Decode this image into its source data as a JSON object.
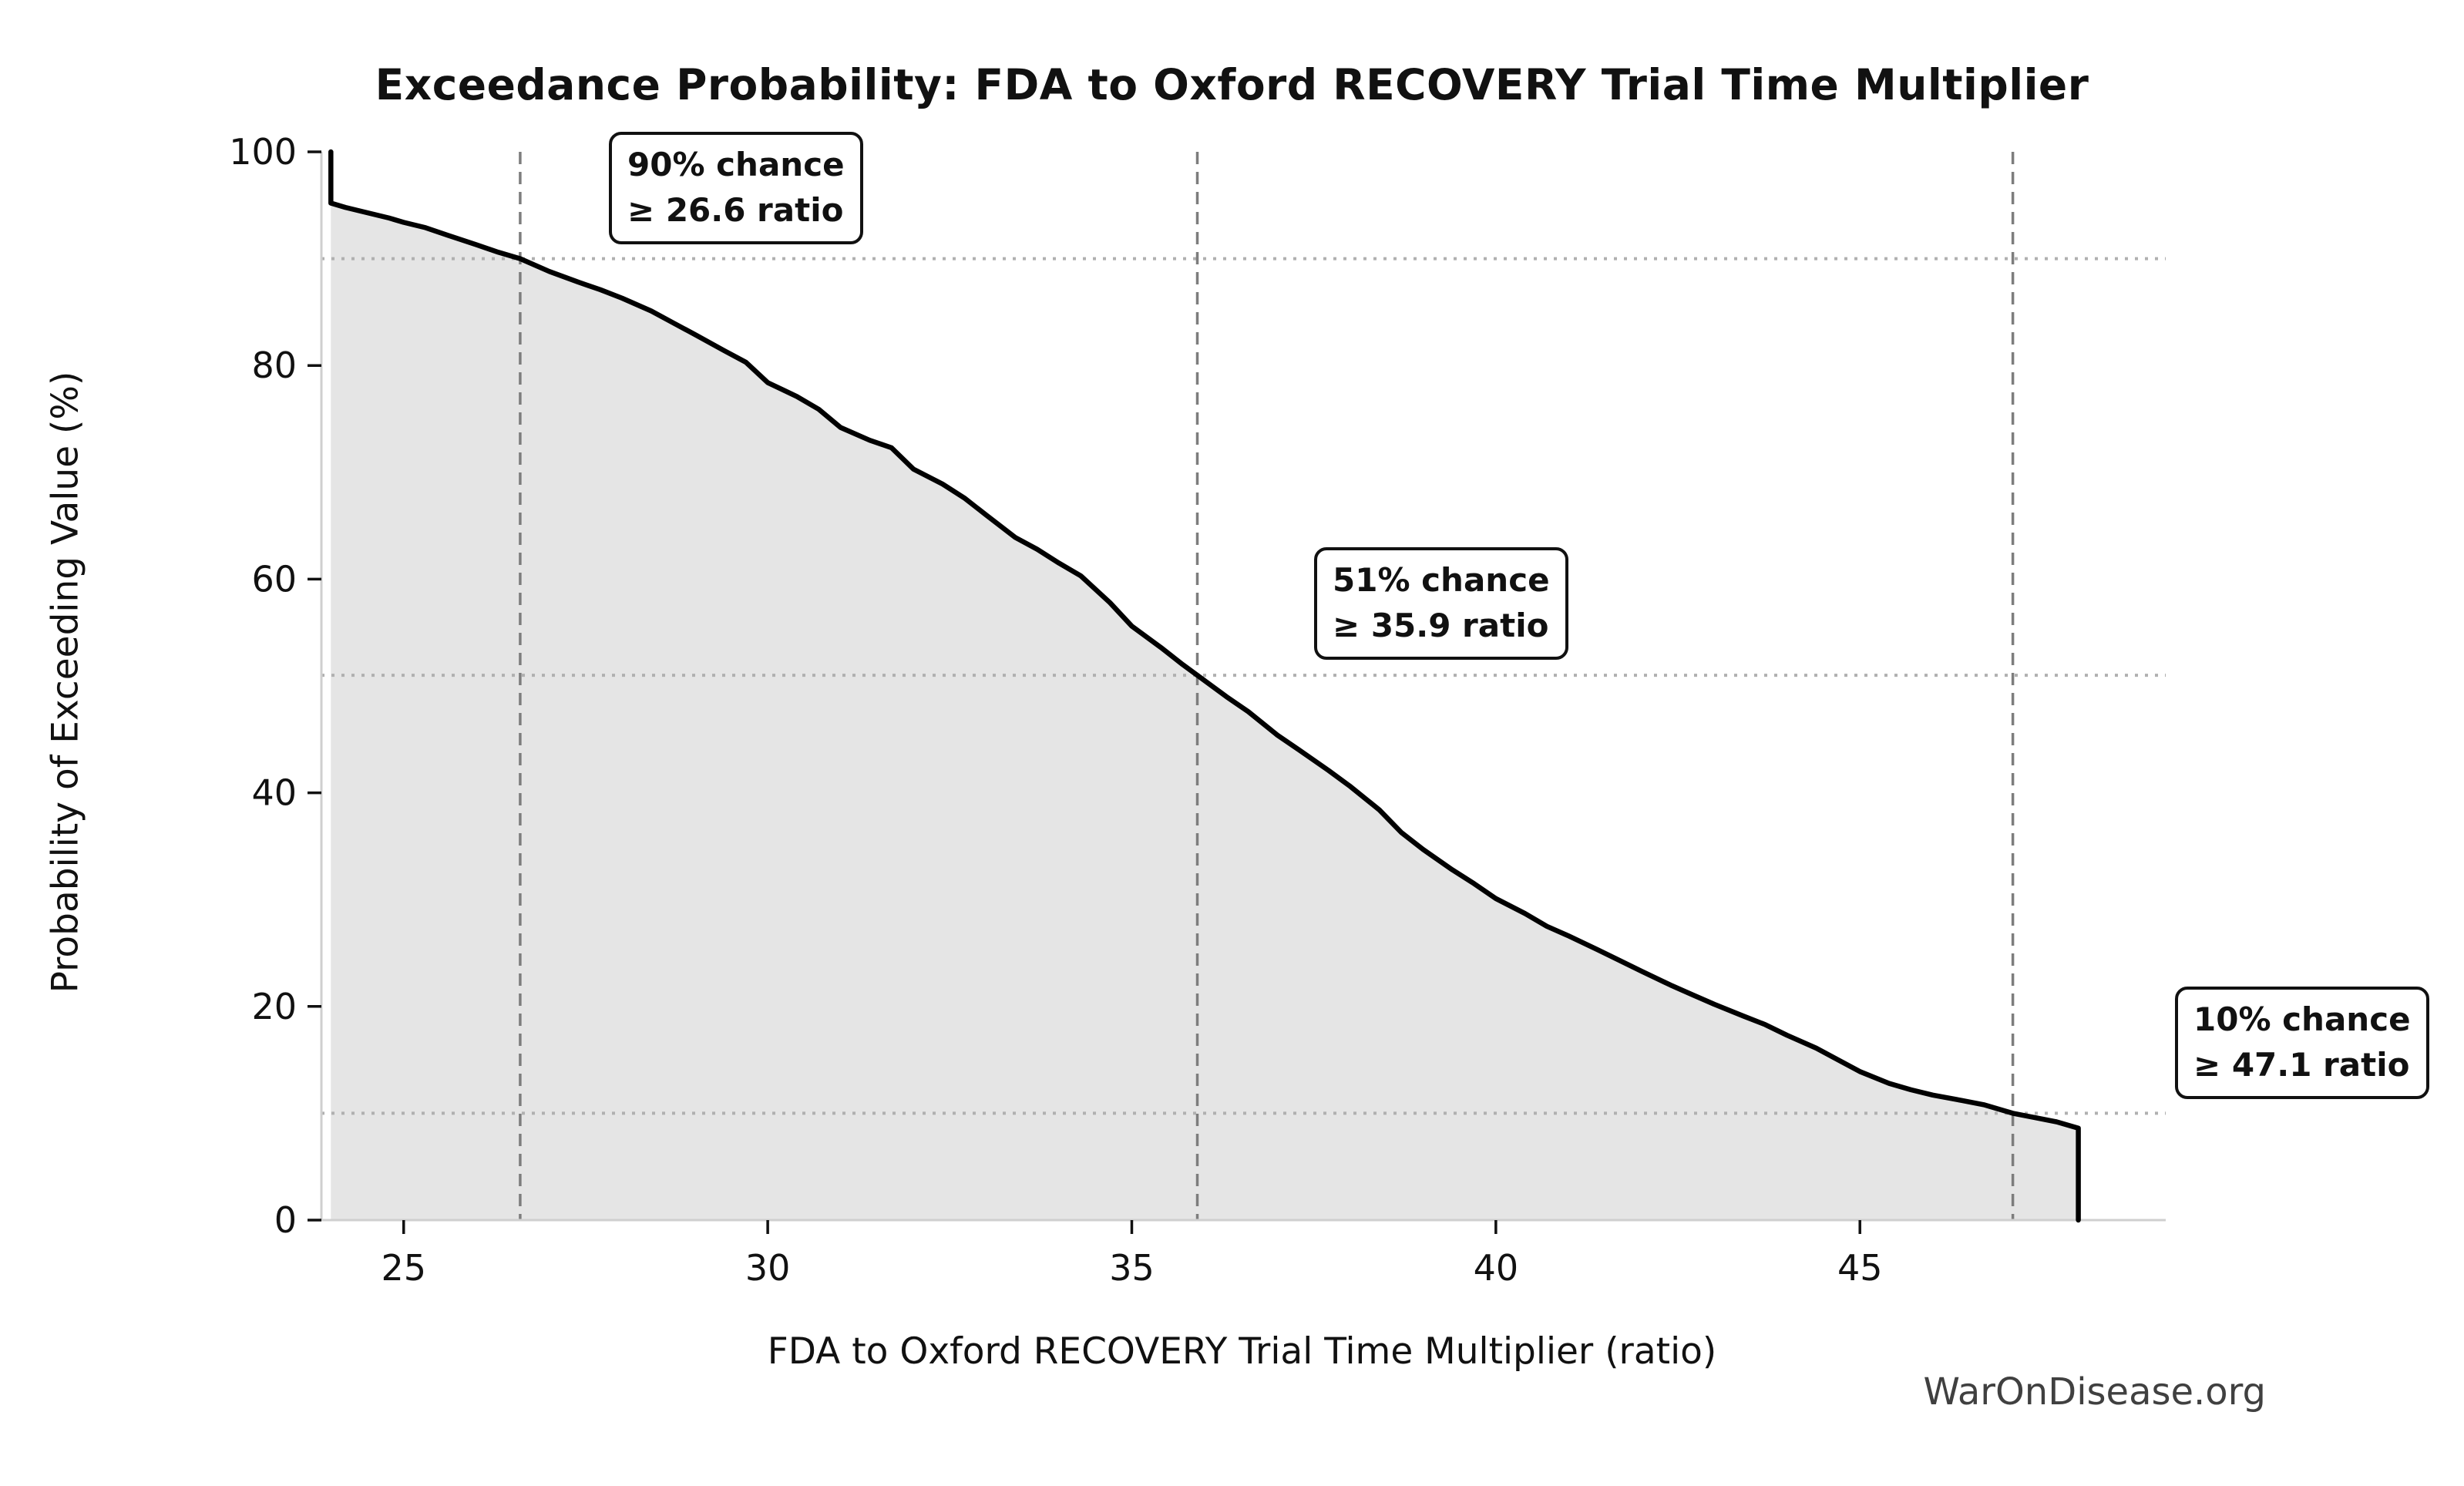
{
  "title": "Exceedance Probability: FDA to Oxford RECOVERY Trial Time Multiplier",
  "watermark": "WarOnDisease.org",
  "chart_data": {
    "type": "area",
    "title": "Exceedance Probability: FDA to Oxford RECOVERY Trial Time Multiplier",
    "xlabel": "FDA to Oxford RECOVERY Trial Time Multiplier (ratio)",
    "ylabel": "Probability of Exceeding Value (%)",
    "xlim": [
      23.87,
      49.2
    ],
    "ylim": [
      0,
      100
    ],
    "x_ticks": [
      25,
      30,
      35,
      40,
      45
    ],
    "y_ticks": [
      0,
      20,
      40,
      60,
      80,
      100
    ],
    "legend": "none",
    "grid": "reference lines only",
    "line_color": "#000000",
    "fill_color": "#e5e5e5",
    "vline_color": "#7d7d7d",
    "hline_color": "#b0b0b0",
    "spine_color": "#cfcfcf",
    "curve": [
      [
        24.0,
        100
      ],
      [
        24.0,
        95.2
      ],
      [
        24.2,
        94.8
      ],
      [
        24.5,
        94.3
      ],
      [
        24.8,
        93.8
      ],
      [
        25.0,
        93.4
      ],
      [
        25.3,
        92.9
      ],
      [
        25.6,
        92.2
      ],
      [
        26.0,
        91.3
      ],
      [
        26.3,
        90.6
      ],
      [
        26.6,
        90.0
      ],
      [
        27.0,
        88.8
      ],
      [
        27.4,
        87.8
      ],
      [
        27.7,
        87.1
      ],
      [
        28.0,
        86.3
      ],
      [
        28.4,
        85.1
      ],
      [
        28.7,
        84.0
      ],
      [
        29.0,
        82.9
      ],
      [
        29.4,
        81.4
      ],
      [
        29.7,
        80.3
      ],
      [
        30.0,
        78.4
      ],
      [
        30.4,
        77.1
      ],
      [
        30.7,
        75.9
      ],
      [
        31.0,
        74.2
      ],
      [
        31.4,
        73.0
      ],
      [
        31.7,
        72.3
      ],
      [
        32.0,
        70.3
      ],
      [
        32.4,
        68.9
      ],
      [
        32.7,
        67.6
      ],
      [
        33.0,
        66.0
      ],
      [
        33.4,
        63.9
      ],
      [
        33.7,
        62.8
      ],
      [
        34.0,
        61.5
      ],
      [
        34.3,
        60.3
      ],
      [
        34.7,
        57.8
      ],
      [
        35.0,
        55.6
      ],
      [
        35.4,
        53.6
      ],
      [
        35.7,
        52.0
      ],
      [
        35.9,
        51.0
      ],
      [
        36.3,
        49.0
      ],
      [
        36.6,
        47.6
      ],
      [
        37.0,
        45.4
      ],
      [
        37.3,
        44.0
      ],
      [
        37.7,
        42.1
      ],
      [
        38.0,
        40.6
      ],
      [
        38.4,
        38.4
      ],
      [
        38.7,
        36.3
      ],
      [
        39.0,
        34.7
      ],
      [
        39.4,
        32.8
      ],
      [
        39.7,
        31.5
      ],
      [
        40.0,
        30.1
      ],
      [
        40.4,
        28.7
      ],
      [
        40.7,
        27.5
      ],
      [
        41.0,
        26.6
      ],
      [
        41.4,
        25.3
      ],
      [
        41.7,
        24.3
      ],
      [
        42.0,
        23.3
      ],
      [
        42.4,
        22.0
      ],
      [
        42.7,
        21.1
      ],
      [
        43.0,
        20.2
      ],
      [
        43.4,
        19.1
      ],
      [
        43.7,
        18.3
      ],
      [
        44.0,
        17.3
      ],
      [
        44.4,
        16.1
      ],
      [
        44.7,
        15.0
      ],
      [
        45.0,
        13.9
      ],
      [
        45.4,
        12.8
      ],
      [
        45.7,
        12.2
      ],
      [
        46.0,
        11.7
      ],
      [
        46.4,
        11.2
      ],
      [
        46.7,
        10.8
      ],
      [
        47.0,
        10.2
      ],
      [
        47.1,
        10.0
      ],
      [
        47.4,
        9.6
      ],
      [
        47.7,
        9.2
      ],
      [
        47.9,
        8.8
      ],
      [
        48.0,
        8.6
      ],
      [
        48.0,
        0
      ]
    ],
    "reference_lines": {
      "vertical_x": [
        26.6,
        35.9,
        47.1
      ],
      "horizontal_y": [
        90,
        51,
        10
      ]
    },
    "annotations": [
      {
        "line1": "90% chance",
        "line2": "≥ 26.6 ratio",
        "percent": 90,
        "ratio": 26.6
      },
      {
        "line1": "51% chance",
        "line2": "≥ 35.9 ratio",
        "percent": 51,
        "ratio": 35.9
      },
      {
        "line1": "10% chance",
        "line2": "≥ 47.1 ratio",
        "percent": 10,
        "ratio": 47.1
      }
    ]
  }
}
